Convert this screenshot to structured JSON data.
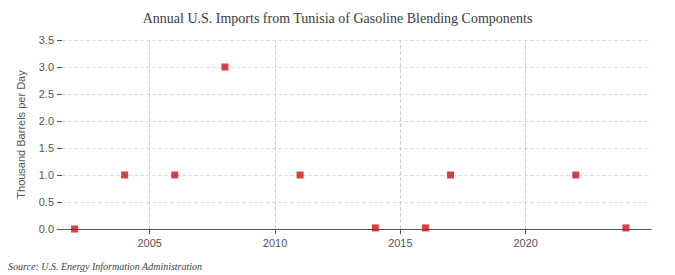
{
  "chart_data": {
    "type": "scatter",
    "title": "Annual U.S. Imports from Tunisia of Gasoline Blending Components",
    "ylabel": "Thousand Barrels per Day",
    "annotation": "Source: U.S. Energy Information Administration",
    "x": [
      2002,
      2004,
      2006,
      2008,
      2011,
      2014,
      2016,
      2017,
      2022,
      2024
    ],
    "values": [
      0.0,
      1.0,
      1.0,
      3.0,
      1.0,
      0.02,
      0.02,
      1.0,
      1.0,
      0.02
    ],
    "color": "#cc1111",
    "marker": "square",
    "xlim": [
      2001.5,
      2025
    ],
    "xticks": [
      2005,
      2010,
      2015,
      2020
    ],
    "ylim": [
      0,
      3.5
    ],
    "yticks": [
      {
        "value": 0.0,
        "label": "0.0"
      },
      0.5,
      {
        "value": 1.0,
        "label": "1.0"
      },
      1.5,
      {
        "value": 2.0,
        "label": "2.0"
      },
      2.5,
      {
        "value": 3.0,
        "label": "3.0"
      },
      3.5
    ],
    "grid": true
  }
}
